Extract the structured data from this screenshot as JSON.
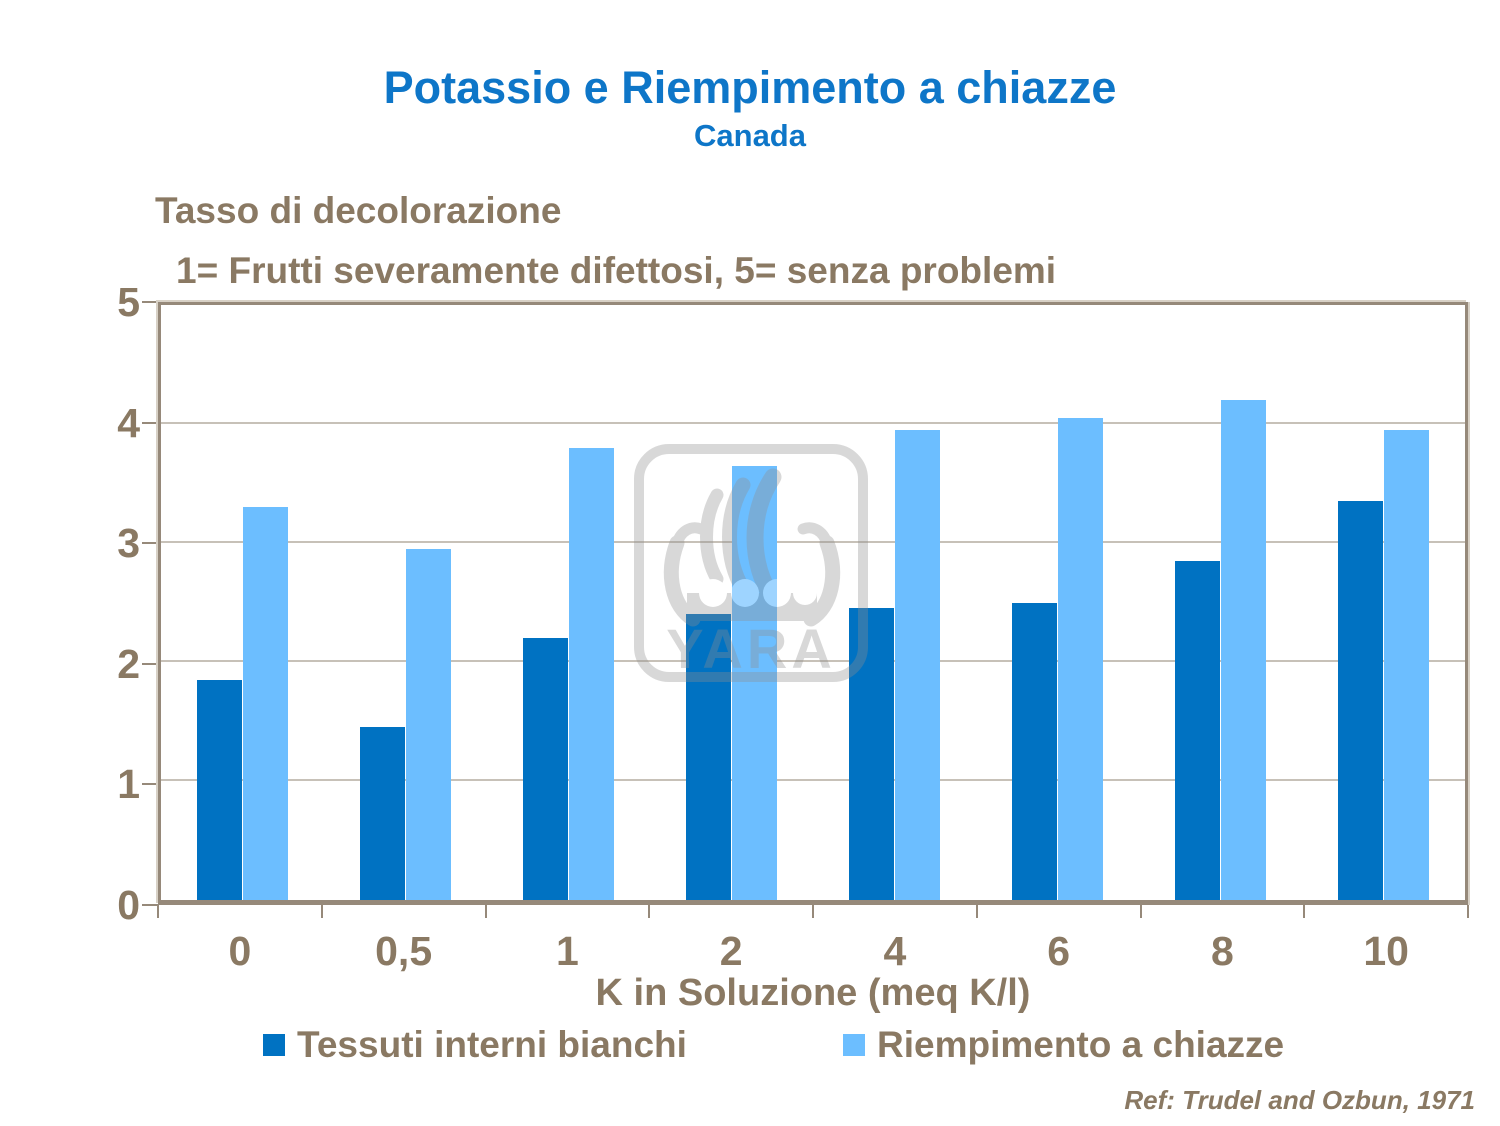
{
  "slide": {
    "title": "Potassio e Riempimento a chiazze",
    "subtitle": "Canada",
    "note_line1": "Tasso di decolorazione",
    "note_line2": "1= Frutti severamente difettosi, 5= senza problemi",
    "reference": "Ref: Trudel and Ozbun, 1971",
    "watermark_text": "YARA"
  },
  "colors": {
    "title_blue": "#0E76C8",
    "text_brown": "#8A7963",
    "series_dark_blue": "#0072C2",
    "series_light_blue": "#6CBEFF",
    "gridline": "#C7C1B8",
    "axis_frame": "#96897A",
    "watermark_gray": "#DCDCDC"
  },
  "chart_data": {
    "type": "bar",
    "title": "Potassio e Riempimento a chiazze — Canada",
    "categories": [
      "0",
      "0,5",
      "1",
      "2",
      "4",
      "6",
      "8",
      "10"
    ],
    "series": [
      {
        "name": "Tessuti interni bianchi",
        "color": "#0072C2",
        "values": [
          1.85,
          1.45,
          2.2,
          2.4,
          2.45,
          2.5,
          2.85,
          3.35
        ]
      },
      {
        "name": "Riempimento a chiazze",
        "color": "#6CBEFF",
        "values": [
          3.3,
          2.95,
          3.8,
          3.65,
          3.95,
          4.05,
          4.2,
          3.95
        ]
      }
    ],
    "xlabel": "K in Soluzione (meq K/l)",
    "ylabel": "Tasso di decolorazione (1= Frutti severamente difettosi, 5= senza problemi)",
    "ylim": [
      0,
      5
    ],
    "yticks": [
      0,
      1,
      2,
      3,
      4,
      5
    ],
    "grid": true,
    "legend_position": "bottom"
  }
}
